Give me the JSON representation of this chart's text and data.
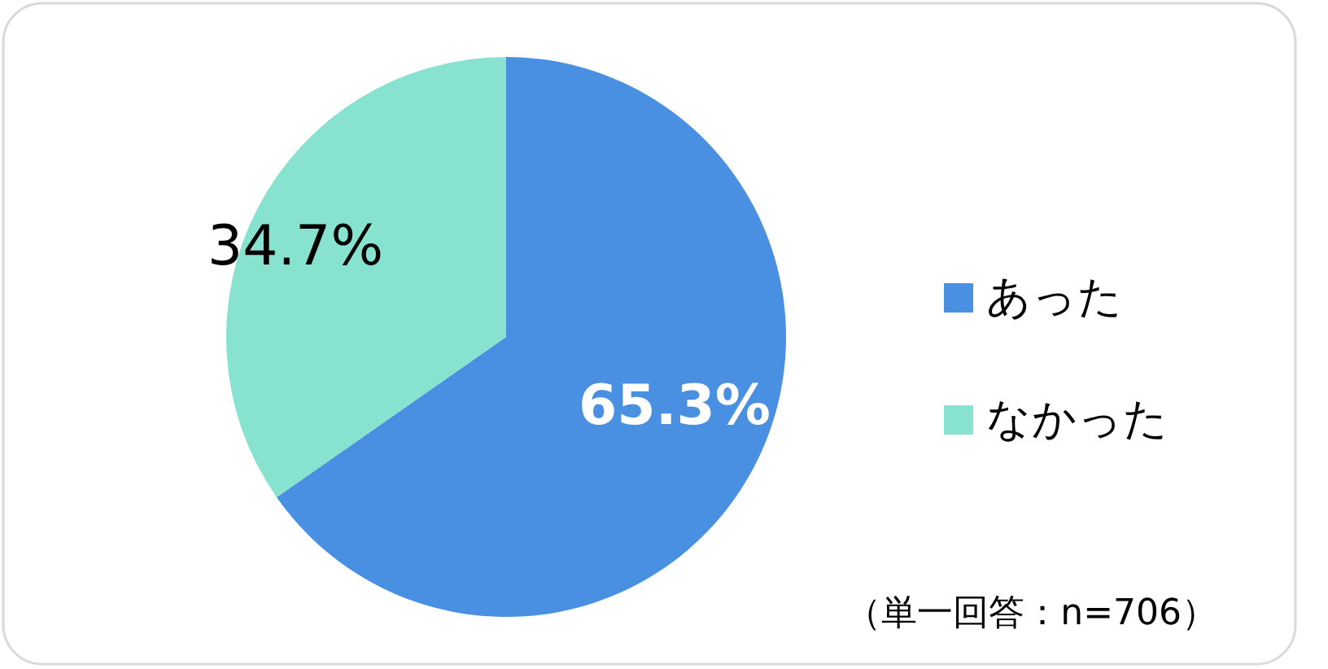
{
  "chart_data": {
    "type": "pie",
    "categories": [
      "あった",
      "なかった"
    ],
    "values": [
      65.3,
      34.7
    ],
    "colors": [
      "#4a90e2",
      "#88e2d0"
    ],
    "value_labels": [
      "65.3%",
      "34.7%"
    ],
    "legend": "right",
    "annotations": [
      "（単一回答：n=706）"
    ]
  }
}
